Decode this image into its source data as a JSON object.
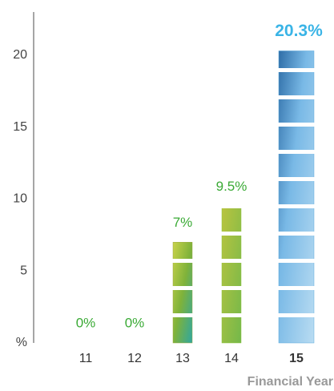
{
  "chart_data": {
    "type": "bar",
    "categories": [
      "11",
      "12",
      "13",
      "14",
      "15"
    ],
    "values": [
      0,
      0,
      7,
      9.5,
      20.3
    ],
    "value_labels": [
      "0%",
      "0%",
      "7%",
      "9.5%",
      "20.3%"
    ],
    "colors": [
      "#8dbf3f",
      "#8dbf3f",
      "#9aa83a",
      "#8cc63f",
      "#5aa9dc"
    ],
    "label_color": "#3aaa35",
    "highlight_color": "#3ab4e6",
    "ylim": [
      0,
      23
    ],
    "yticks": [
      {
        "value": 0,
        "label": "%"
      },
      5,
      10,
      15,
      20
    ],
    "xlabel": "Financial Year"
  }
}
